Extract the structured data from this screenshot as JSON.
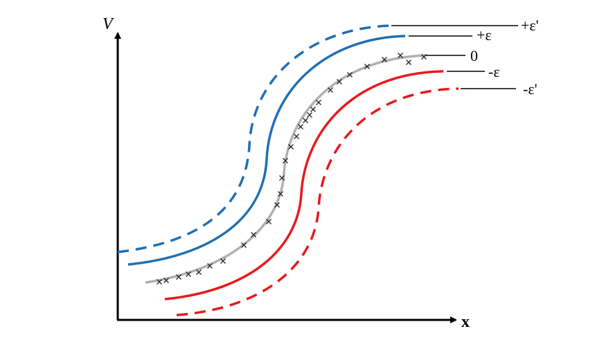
{
  "axes": {
    "y_label": "V",
    "x_label": "x"
  },
  "curves": [
    {
      "label": "+ε'"
    },
    {
      "label": "+ε"
    },
    {
      "label": "0"
    },
    {
      "label": "-ε"
    },
    {
      "label": "-ε'"
    }
  ]
}
